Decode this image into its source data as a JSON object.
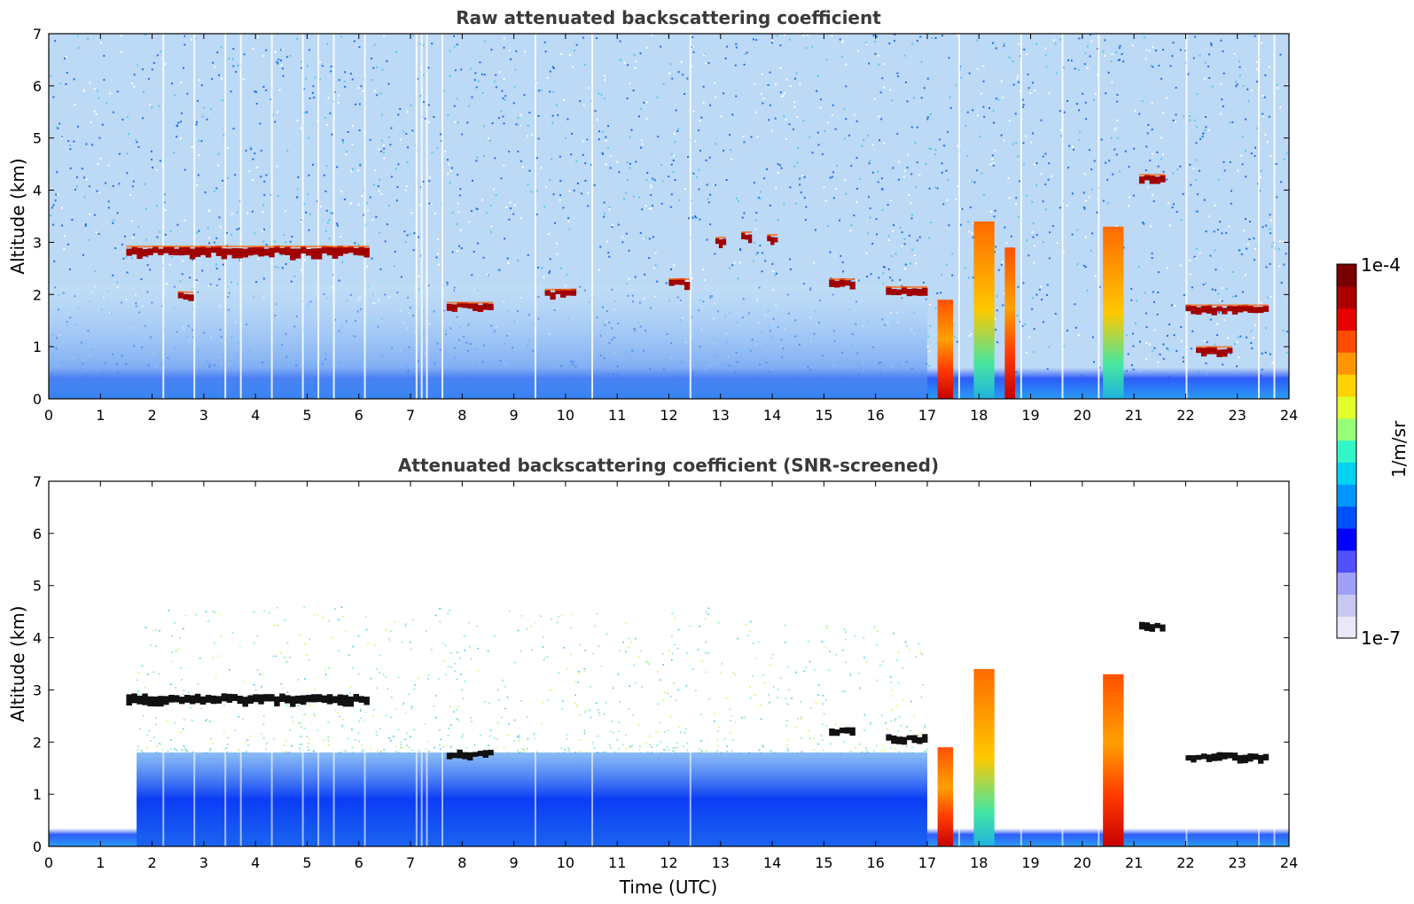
{
  "chart_data": [
    {
      "type": "heatmap",
      "title": "Raw attenuated backscattering coefficient",
      "xlabel": "",
      "ylabel": "Altitude (km)",
      "xlim": [
        0,
        24
      ],
      "ylim": [
        0,
        7
      ],
      "xticks": [
        "0",
        "1",
        "2",
        "3",
        "4",
        "5",
        "6",
        "7",
        "8",
        "9",
        "10",
        "11",
        "12",
        "13",
        "14",
        "15",
        "16",
        "17",
        "18",
        "19",
        "20",
        "21",
        "22",
        "23",
        "24"
      ],
      "yticks": [
        "0",
        "1",
        "2",
        "3",
        "4",
        "5",
        "6",
        "7"
      ],
      "layers": [
        {
          "name": "boundary layer",
          "x_start": 0,
          "x_end": 24,
          "y_top_km": 0.6
        },
        {
          "name": "aerosol layer",
          "x_start": 0,
          "x_end": 17,
          "y_top_km": 2.2
        }
      ],
      "features": [
        {
          "name": "cloud layer",
          "x_start": 1.5,
          "x_end": 6.2,
          "altitude_km": 2.8
        },
        {
          "name": "cloud patch",
          "x_start": 2.5,
          "x_end": 2.8,
          "altitude_km": 1.95
        },
        {
          "name": "cloud patch",
          "x_start": 7.7,
          "x_end": 8.6,
          "altitude_km": 1.75
        },
        {
          "name": "cloud patch",
          "x_start": 9.6,
          "x_end": 10.2,
          "altitude_km": 2.0
        },
        {
          "name": "cloud patch",
          "x_start": 12.0,
          "x_end": 12.4,
          "altitude_km": 2.2
        },
        {
          "name": "cloud patch",
          "x_start": 12.9,
          "x_end": 13.1,
          "altitude_km": 3.0
        },
        {
          "name": "cloud patch",
          "x_start": 13.4,
          "x_end": 13.6,
          "altitude_km": 3.1
        },
        {
          "name": "cloud patch",
          "x_start": 13.9,
          "x_end": 14.1,
          "altitude_km": 3.05
        },
        {
          "name": "cloud patch",
          "x_start": 15.1,
          "x_end": 15.6,
          "altitude_km": 2.2
        },
        {
          "name": "cloud patch",
          "x_start": 16.2,
          "x_end": 17.0,
          "altitude_km": 2.05
        },
        {
          "name": "cloud patch",
          "x_start": 21.1,
          "x_end": 21.6,
          "altitude_km": 4.2
        },
        {
          "name": "cloud patch",
          "x_start": 22.0,
          "x_end": 23.6,
          "altitude_km": 1.7
        },
        {
          "name": "cloud patch",
          "x_start": 22.2,
          "x_end": 22.9,
          "altitude_km": 0.9
        }
      ],
      "strong_columns": [
        {
          "x_start": 17.2,
          "x_end": 17.5,
          "altitude_km": 1.9
        },
        {
          "x_start": 17.9,
          "x_end": 18.3,
          "altitude_km": 3.4
        },
        {
          "x_start": 18.5,
          "x_end": 18.7,
          "altitude_km": 2.9
        },
        {
          "x_start": 20.4,
          "x_end": 20.8,
          "altitude_km": 3.3
        }
      ]
    },
    {
      "type": "heatmap",
      "title": "Attenuated backscattering coefficient (SNR-screened)",
      "xlabel": "Time (UTC)",
      "ylabel": "Altitude (km)",
      "xlim": [
        0,
        24
      ],
      "ylim": [
        0,
        7
      ],
      "xticks": [
        "0",
        "1",
        "2",
        "3",
        "4",
        "5",
        "6",
        "7",
        "8",
        "9",
        "10",
        "11",
        "12",
        "13",
        "14",
        "15",
        "16",
        "17",
        "18",
        "19",
        "20",
        "21",
        "22",
        "23",
        "24"
      ],
      "yticks": [
        "0",
        "1",
        "2",
        "3",
        "4",
        "5",
        "6",
        "7"
      ],
      "layers": [
        {
          "name": "boundary layer",
          "x_start": 0,
          "x_end": 24,
          "y_top_km": 0.35
        },
        {
          "name": "aerosol layer",
          "x_start": 1.7,
          "x_end": 17,
          "y_top_km": 1.8
        }
      ],
      "features": [
        {
          "name": "cloud layer",
          "x_start": 1.5,
          "x_end": 6.2,
          "altitude_km": 2.8
        },
        {
          "name": "cloud patch",
          "x_start": 7.7,
          "x_end": 8.6,
          "altitude_km": 1.75
        },
        {
          "name": "cloud patch",
          "x_start": 15.1,
          "x_end": 15.6,
          "altitude_km": 2.2
        },
        {
          "name": "cloud patch",
          "x_start": 16.2,
          "x_end": 17.0,
          "altitude_km": 2.05
        },
        {
          "name": "cloud patch",
          "x_start": 21.1,
          "x_end": 21.6,
          "altitude_km": 4.2
        },
        {
          "name": "cloud patch",
          "x_start": 22.0,
          "x_end": 23.6,
          "altitude_km": 1.7
        }
      ],
      "strong_columns": [
        {
          "x_start": 17.2,
          "x_end": 17.5,
          "altitude_km": 1.9
        },
        {
          "x_start": 17.9,
          "x_end": 18.3,
          "altitude_km": 3.4
        },
        {
          "x_start": 20.4,
          "x_end": 20.8,
          "altitude_km": 3.3
        }
      ]
    }
  ],
  "colorbar": {
    "max_label": "1e-4",
    "min_label": "1e-7",
    "unit_label": "1/m/sr",
    "scale": "log",
    "colors": [
      "#e8e8f8",
      "#c8c8f0",
      "#a0a0f8",
      "#5050ff",
      "#0000ff",
      "#0050ff",
      "#0096ff",
      "#00d2f0",
      "#32f5c8",
      "#96ff78",
      "#e1ff28",
      "#ffd200",
      "#ff9600",
      "#ff4b00",
      "#e60000",
      "#aa0000",
      "#780000"
    ]
  }
}
